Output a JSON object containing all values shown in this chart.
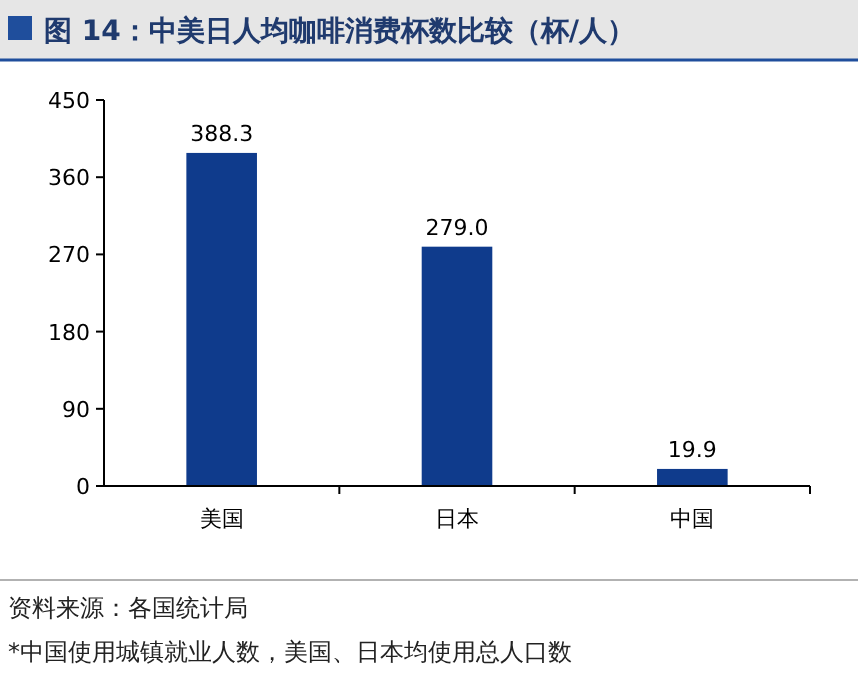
{
  "chart_data": {
    "type": "bar",
    "title": "图 14：中美日人均咖啡消费杯数比较（杯/人）",
    "categories": [
      "美国",
      "日本",
      "中国"
    ],
    "values": [
      388.3,
      279.0,
      19.9
    ],
    "value_labels": [
      "388.3",
      "279.0",
      "19.9"
    ],
    "color": "#0f3b8c",
    "ylim": [
      0,
      450
    ],
    "yticks": [
      0,
      90,
      180,
      270,
      360,
      450
    ],
    "grid": false,
    "annotations": [
      "资料来源：各国统计局",
      "*中国使用城镇就业人数，美国、日本均使用总人口数"
    ]
  }
}
